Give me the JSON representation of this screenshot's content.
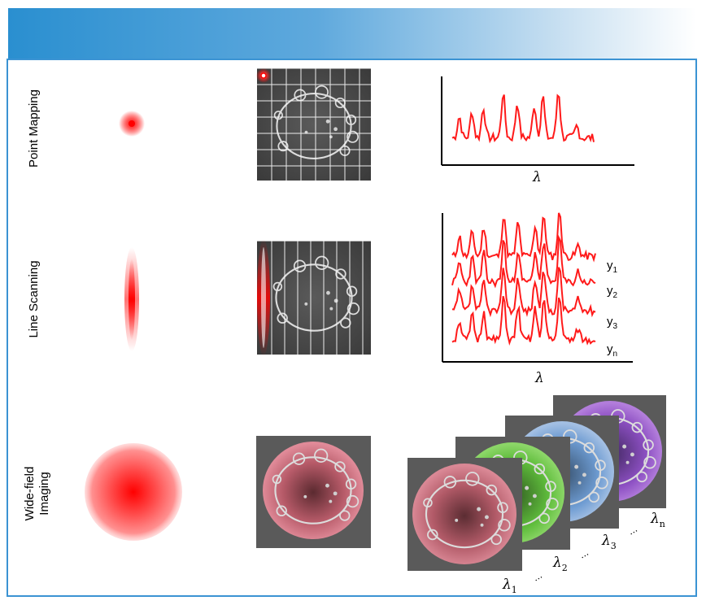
{
  "rows": [
    {
      "label": "Point Mapping"
    },
    {
      "label": "Line Scanning"
    },
    {
      "label_line1": "Wide-field",
      "label_line2": "Imaging"
    }
  ],
  "axis_symbol": "λ",
  "line_scan_labels": [
    {
      "base": "y",
      "sub": "1"
    },
    {
      "base": "y",
      "sub": "2"
    },
    {
      "base": "y",
      "sub": "3"
    },
    {
      "base": "y",
      "sub": "n"
    }
  ],
  "wavelength_labels": [
    {
      "base": "λ",
      "sub": "1"
    },
    {
      "base": "λ",
      "sub": "2"
    },
    {
      "base": "λ",
      "sub": "3"
    },
    {
      "base": "λ",
      "sub": "n"
    }
  ],
  "ellipsis": "...",
  "colors": {
    "banner_start": "#2a8fd0",
    "frame": "#3b93d3",
    "spectrum": "#ff1a1a",
    "overlay_red": "#e07a85",
    "overlay_green": "#5fc23a",
    "overlay_blue": "#6f9fd8",
    "overlay_purple": "#8f4fc8"
  }
}
